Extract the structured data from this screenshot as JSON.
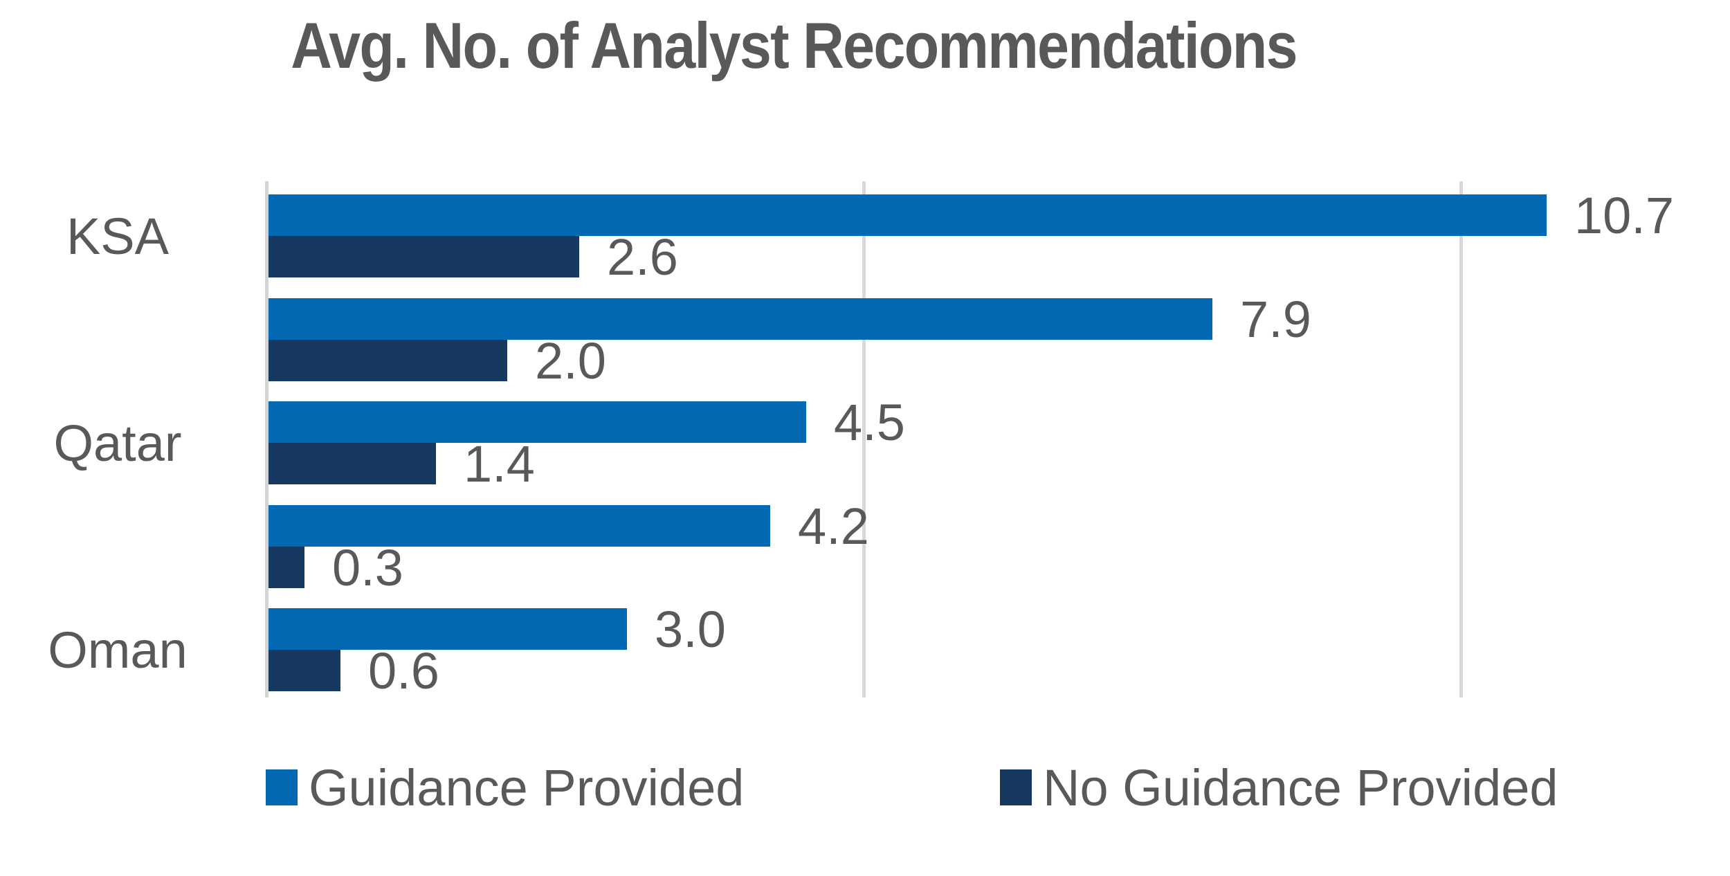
{
  "title": "Avg. No. of Analyst Recommendations",
  "legend": {
    "items": [
      {
        "label": "Guidance Provided",
        "color": "#0369B2"
      },
      {
        "label": "No Guidance Provided",
        "color": "#17395F"
      }
    ]
  },
  "colors": {
    "series_guidance_provided": "#0369B2",
    "series_no_guidance_provided": "#17395F",
    "title_text": "#58595B",
    "label_text": "#595959",
    "gridline": "#D9D9D9",
    "axis_line": "#D4D4D4"
  },
  "chart_data": {
    "type": "bar",
    "orientation": "horizontal",
    "title": "Avg. No. of Analyst Recommendations",
    "categories": [
      "KSA",
      "",
      "Qatar",
      "",
      "Oman"
    ],
    "visible_category_labels": [
      "KSA",
      "Qatar",
      "Oman"
    ],
    "series": [
      {
        "name": "Guidance Provided",
        "color": "#0369B2",
        "values": [
          10.7,
          7.9,
          4.5,
          4.2,
          3.0
        ]
      },
      {
        "name": "No Guidance Provided",
        "color": "#17395F",
        "values": [
          2.6,
          2.0,
          1.4,
          0.3,
          0.6
        ]
      }
    ],
    "value_label_format": "one_decimal",
    "value_labels": [
      [
        "10.7",
        "2.6"
      ],
      [
        "7.9",
        "2.0"
      ],
      [
        "4.5",
        "1.4"
      ],
      [
        "4.2",
        "0.3"
      ],
      [
        "3.0",
        "0.6"
      ]
    ],
    "xlim": [
      0,
      11.7
    ],
    "gridlines_x": [
      5,
      10
    ],
    "x_tick_labels_visible": false,
    "grid": "vertical-only",
    "legend_position": "bottom"
  }
}
